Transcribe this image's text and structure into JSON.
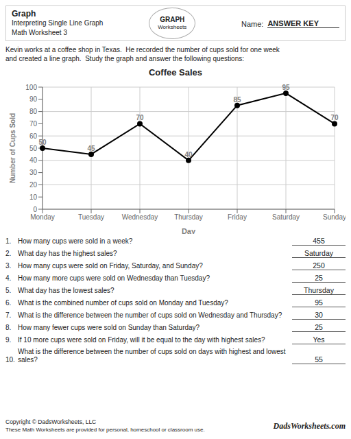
{
  "chart_data": {
    "type": "line",
    "title": "Coffee Sales",
    "x_label": "Day",
    "y_label": "Number of Cups Sold",
    "categories": [
      "Monday",
      "Tuesday",
      "Wednesday",
      "Thursday",
      "Friday",
      "Saturday",
      "Sunday"
    ],
    "values": [
      50,
      45,
      70,
      40,
      85,
      95,
      70
    ],
    "color": "#000000",
    "marker": "circle",
    "ylim": [
      0,
      100
    ],
    "yticks": [
      0,
      10,
      20,
      30,
      40,
      50,
      60,
      70,
      80,
      90,
      100
    ],
    "grid": true,
    "data_labels": true,
    "annotations": [
      "Graph",
      "Interpreting Single Line Graph",
      "Math Worksheet 3",
      "Name:",
      "ANSWER KEY",
      "GRAPH",
      "Worksheets",
      "Kevin works at a coffee shop in Texas.  He recorded the number of cups sold for one week\nand created a line graph.  Study the graph and answer the following questions:",
      "1.",
      "How many cups were sold in a week?",
      "455",
      "2.",
      "What day has the highest sales?",
      "Saturday",
      "3.",
      "How many cups were sold on Friday, Saturday, and Sunday?",
      "250",
      "4.",
      "How many more cups were sold on Wednesday than Tuesday?",
      "25",
      "5.",
      "What day has the lowest sales?",
      "Thursday",
      "6.",
      "What is the combined number of cups sold on Monday and Tuesday?",
      "95",
      "7.",
      "What is the difference between the number of cups sold on Wednesday and Thursday?",
      "30",
      "8.",
      "How many fewer cups were sold on Sunday than Saturday?",
      "25",
      "9.",
      "If 10 more cups were sold on Friday, will it be equal to the day with highest sales?",
      "Yes",
      "10.",
      "What is the difference between the number of cups sold on days with highest and lowest sales?",
      "55",
      "Copyright © DadsWorksheets, LLC",
      "These Math Worksheets are provided for personal, homeschool or classroom use.",
      "DadsWorksheets.com"
    ]
  }
}
